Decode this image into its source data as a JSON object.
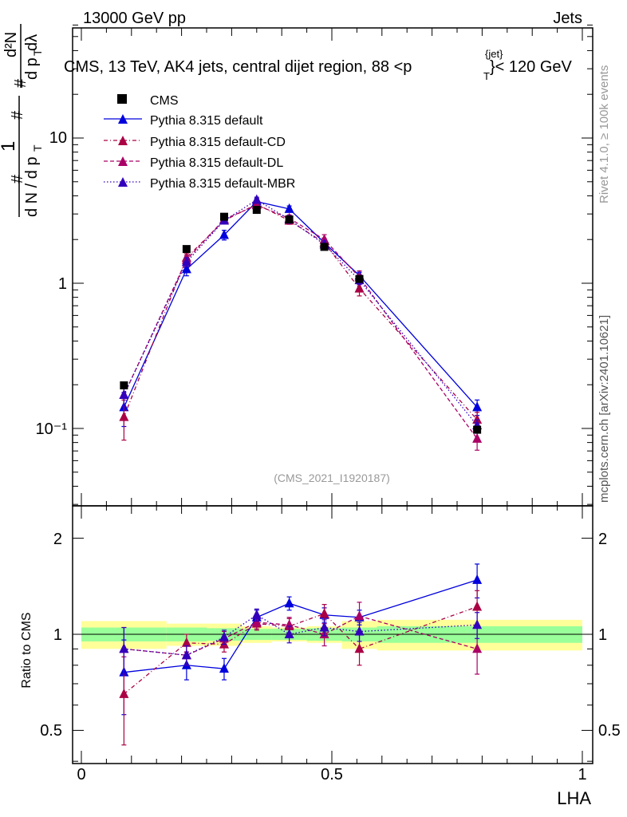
{
  "header": {
    "left": "13000 GeV pp",
    "right": "Jets"
  },
  "side": {
    "rivet": "Rivet 4.1.0, ≥ 100k events",
    "mcplots": "mcplots.cern.ch [arXiv:2401.10621]"
  },
  "colors": {
    "data": "#000000",
    "default": "#0000dd",
    "cd": "#aa0044",
    "dl": "#aa0066",
    "mbr": "#3300bb",
    "band_inner": "#99ff99",
    "band_outer": "#ffff99",
    "watermark": "#999999"
  },
  "chart_data": {
    "type": "scatter",
    "title": "CMS, 13 TeV, AK4 jets, central dijet region, 88 <p",
    "title_sup": "{jet}",
    "title_sub": "T",
    "title_end": "}< 120 GeV",
    "watermark": "(CMS_2021_I1920187)",
    "xlabel": "LHA",
    "ylabel_top": "#  1/ dN / dp_T  # d²N / dp_T dλ",
    "ylabel_ratio": "Ratio to CMS",
    "xlim": [
      0,
      1
    ],
    "ylim_main": [
      0.03,
      60
    ],
    "ylim_ratio": [
      0.4,
      2.4
    ],
    "xticks": [
      "0",
      "0.5",
      "1"
    ],
    "yticks_main": [
      "10⁻¹",
      "1",
      "10"
    ],
    "yticks_ratio": [
      "0.5",
      "1",
      "2"
    ],
    "x": [
      0.085,
      0.21,
      0.285,
      0.35,
      0.415,
      0.485,
      0.555,
      0.79
    ],
    "bins": [
      [
        0.0,
        0.17
      ],
      [
        0.17,
        0.25
      ],
      [
        0.25,
        0.32
      ],
      [
        0.32,
        0.38
      ],
      [
        0.38,
        0.45
      ],
      [
        0.45,
        0.52
      ],
      [
        0.52,
        0.59
      ],
      [
        0.59,
        1.0
      ]
    ],
    "data_values": [
      0.198,
      1.72,
      2.87,
      3.2,
      2.75,
      1.78,
      1.07,
      0.098
    ],
    "band_inner": [
      0.05,
      0.05,
      0.045,
      0.04,
      0.04,
      0.045,
      0.05,
      0.06
    ],
    "band_outer": [
      0.1,
      0.08,
      0.08,
      0.06,
      0.05,
      0.06,
      0.1,
      0.11
    ],
    "series": [
      {
        "key": "default",
        "name": "Pythia 8.315 default",
        "style": "solid",
        "values": [
          0.14,
          1.25,
          2.15,
          3.65,
          3.25,
          1.9,
          1.13,
          0.14
        ],
        "ratio": [
          0.76,
          0.8,
          0.78,
          1.13,
          1.25,
          1.15,
          1.13,
          1.48
        ],
        "ratio_err": [
          0.2,
          0.08,
          0.06,
          0.06,
          0.06,
          0.06,
          0.06,
          0.18
        ]
      },
      {
        "key": "cd",
        "name": "Pythia 8.315 default-CD",
        "style": "dashdot",
        "values": [
          0.12,
          1.5,
          2.7,
          3.5,
          2.7,
          1.9,
          0.92,
          0.115
        ],
        "ratio": [
          0.65,
          0.94,
          0.93,
          1.08,
          1.06,
          1.16,
          0.9,
          1.22
        ],
        "ratio_err": [
          0.2,
          0.06,
          0.05,
          0.05,
          0.06,
          0.08,
          0.1,
          0.15
        ]
      },
      {
        "key": "dl",
        "name": "Pythia 8.315 default-DL",
        "style": "dashed",
        "values": [
          0.17,
          1.45,
          2.75,
          3.45,
          2.8,
          2.0,
          1.1,
          0.085
        ],
        "ratio": [
          0.9,
          0.86,
          0.97,
          1.09,
          1.07,
          1.0,
          1.14,
          0.9
        ],
        "ratio_err": [
          0.15,
          0.06,
          0.05,
          0.05,
          0.06,
          0.08,
          0.12,
          0.15
        ]
      },
      {
        "key": "mbr",
        "name": "Pythia 8.315 default-MBR",
        "style": "dotted",
        "values": [
          0.17,
          1.4,
          2.7,
          3.75,
          2.75,
          1.85,
          1.05,
          0.105
        ],
        "ratio": [
          0.9,
          0.86,
          0.98,
          1.15,
          1.0,
          1.05,
          1.02,
          1.07
        ],
        "ratio_err": [
          0.15,
          0.06,
          0.05,
          0.05,
          0.06,
          0.06,
          0.07,
          0.1
        ]
      }
    ],
    "data_label": "CMS"
  }
}
